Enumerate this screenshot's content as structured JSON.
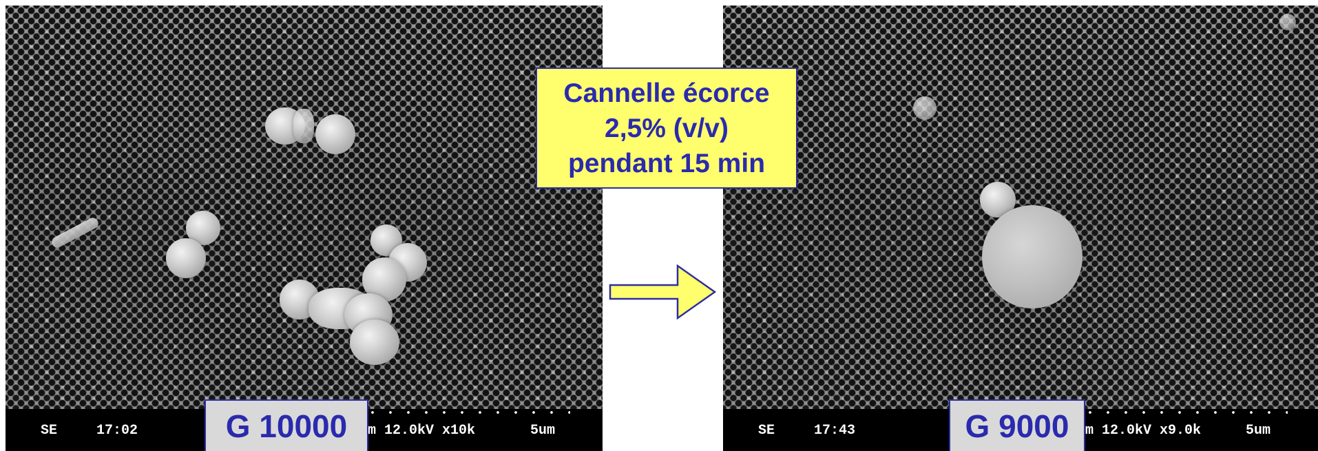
{
  "left_image": {
    "detector": "SE",
    "time": "17:02",
    "params_fragment": "m 12.0kV x10k",
    "scale_bar": "5um",
    "magnification_label": "G 10000"
  },
  "right_image": {
    "detector": "SE",
    "time": "17:43",
    "params_fragment": "m 12.0kV x9.0k",
    "scale_bar": "5um",
    "magnification_label": "G 9000"
  },
  "caption": {
    "line1": "Cannelle écorce",
    "line2": "2,5% (v/v)",
    "line3": "pendant 15 min"
  },
  "colors": {
    "caption_background": "#ffff6e",
    "text_blue": "#2a2aae",
    "arrow_fill": "#ffff6e",
    "label_background": "#d9d9d9"
  },
  "icons": {
    "arrow": "right-arrow-icon"
  }
}
